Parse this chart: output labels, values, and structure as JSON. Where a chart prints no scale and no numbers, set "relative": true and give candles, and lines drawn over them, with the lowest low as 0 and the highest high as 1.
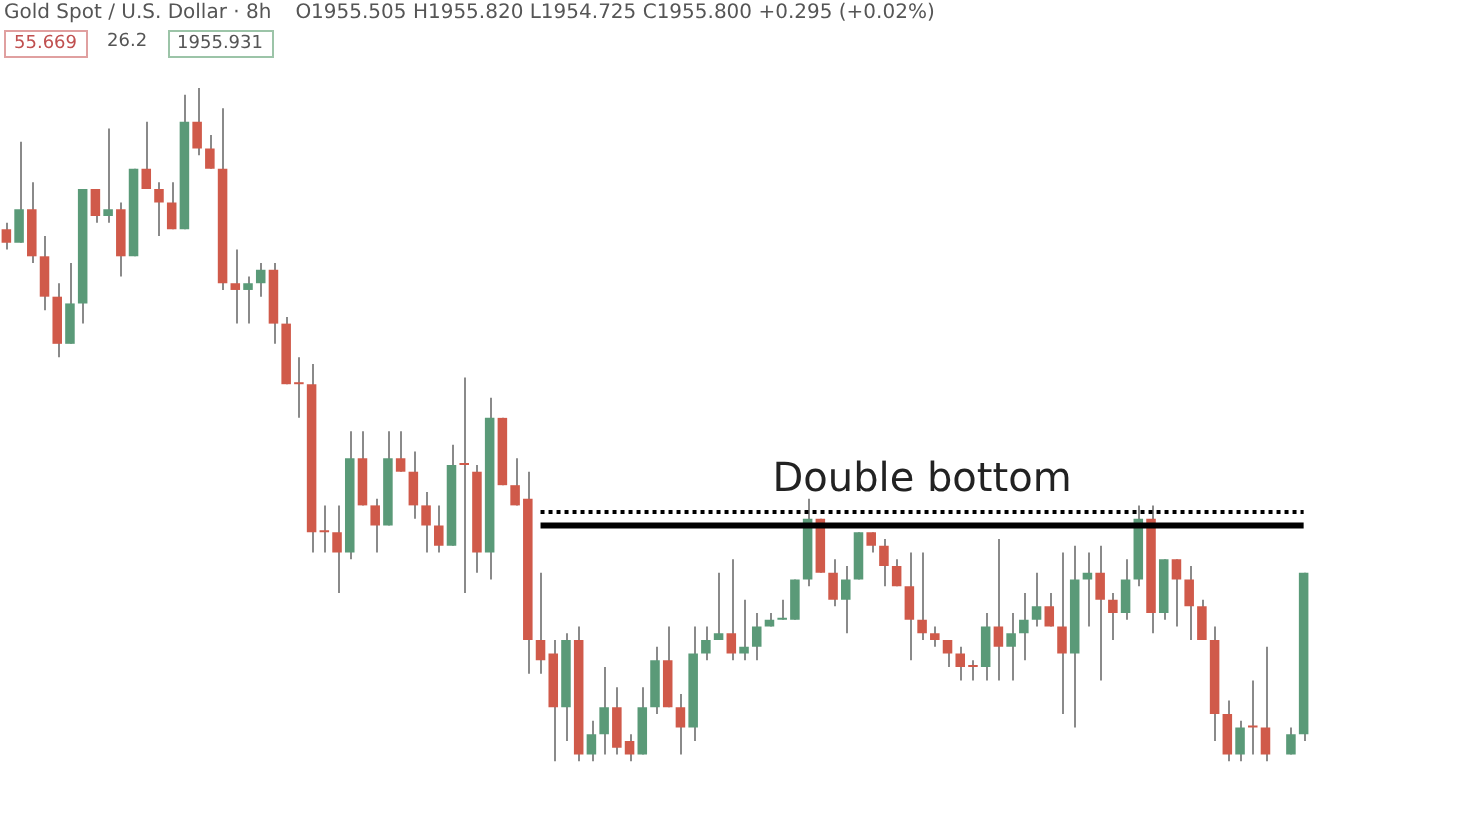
{
  "chart_data": {
    "type": "candlestick",
    "title": "Gold Spot / U.S. Dollar · 8h",
    "relative": true,
    "legend": false,
    "annotations": [
      "Double bottom",
      "O1955.505 H1955.820 L1954.725 C1955.800 +0.295 (+0.02%)",
      "55.669",
      "26.2",
      "1955.931"
    ],
    "categories": [
      null,
      null,
      null,
      null,
      null,
      null,
      null,
      null,
      null,
      null,
      null,
      null,
      null,
      null,
      null,
      null,
      null,
      null,
      null,
      null,
      null,
      null,
      null,
      null,
      null,
      null,
      null,
      null,
      null,
      null,
      null,
      null,
      null,
      null,
      null,
      null,
      null,
      null,
      null,
      null,
      null,
      null,
      null,
      null,
      null,
      null,
      null,
      null,
      null,
      null,
      null,
      null,
      null,
      null,
      null,
      null,
      null,
      null,
      null,
      null,
      null,
      null,
      null,
      null,
      null,
      null,
      null,
      null,
      null,
      null,
      null,
      null,
      null,
      null,
      null,
      null,
      null,
      null,
      null,
      null,
      null,
      null,
      null,
      null,
      null,
      null,
      null,
      null,
      null,
      null,
      null,
      null,
      null,
      null,
      null,
      null,
      null,
      null,
      null,
      null,
      null,
      null,
      null
    ],
    "ohlc": [
      [
        0.79,
        0.8,
        0.76,
        0.77
      ],
      [
        0.77,
        0.92,
        0.77,
        0.82
      ],
      [
        0.82,
        0.86,
        0.74,
        0.75
      ],
      [
        0.75,
        0.78,
        0.67,
        0.69
      ],
      [
        0.69,
        0.71,
        0.6,
        0.62
      ],
      [
        0.62,
        0.74,
        0.62,
        0.68
      ],
      [
        0.68,
        0.85,
        0.65,
        0.85
      ],
      [
        0.85,
        0.85,
        0.8,
        0.81
      ],
      [
        0.81,
        0.94,
        0.8,
        0.82
      ],
      [
        0.82,
        0.83,
        0.72,
        0.75
      ],
      [
        0.75,
        0.88,
        0.75,
        0.88
      ],
      [
        0.88,
        0.95,
        0.85,
        0.85
      ],
      [
        0.85,
        0.86,
        0.78,
        0.83
      ],
      [
        0.83,
        0.86,
        0.79,
        0.79
      ],
      [
        0.79,
        0.99,
        0.79,
        0.95
      ],
      [
        0.95,
        1,
        0.9,
        0.91
      ],
      [
        0.91,
        0.93,
        0.88,
        0.88
      ],
      [
        0.88,
        0.97,
        0.7,
        0.71
      ],
      [
        0.71,
        0.76,
        0.65,
        0.7
      ],
      [
        0.7,
        0.72,
        0.65,
        0.71
      ],
      [
        0.71,
        0.74,
        0.69,
        0.73
      ],
      [
        0.73,
        0.74,
        0.62,
        0.65
      ],
      [
        0.65,
        0.66,
        0.56,
        0.56
      ],
      [
        0.56,
        0.6,
        0.51,
        0.56
      ],
      [
        0.56,
        0.59,
        0.31,
        0.34
      ],
      [
        0.34,
        0.38,
        0.31,
        0.34
      ],
      [
        0.34,
        0.38,
        0.25,
        0.31
      ],
      [
        0.31,
        0.49,
        0.3,
        0.45
      ],
      [
        0.45,
        0.49,
        0.38,
        0.38
      ],
      [
        0.38,
        0.39,
        0.31,
        0.35
      ],
      [
        0.35,
        0.49,
        0.35,
        0.45
      ],
      [
        0.45,
        0.49,
        0.43,
        0.43
      ],
      [
        0.43,
        0.46,
        0.36,
        0.38
      ],
      [
        0.38,
        0.4,
        0.31,
        0.35
      ],
      [
        0.35,
        0.38,
        0.31,
        0.32
      ],
      [
        0.32,
        0.47,
        0.32,
        0.44
      ],
      [
        0.44,
        0.57,
        0.25,
        0.44
      ],
      [
        0.43,
        0.44,
        0.28,
        0.31
      ],
      [
        0.31,
        0.54,
        0.27,
        0.51
      ],
      [
        0.51,
        0.51,
        0.41,
        0.41
      ],
      [
        0.41,
        0.45,
        0.38,
        0.38
      ],
      [
        0.39,
        0.43,
        0.13,
        0.18
      ],
      [
        0.18,
        0.28,
        0.13,
        0.15
      ],
      [
        0.16,
        0.18,
        0,
        0.08
      ],
      [
        0.08,
        0.19,
        0.03,
        0.18
      ],
      [
        0.18,
        0.2,
        0,
        0.01
      ],
      [
        0.01,
        0.06,
        0,
        0.04
      ],
      [
        0.04,
        0.14,
        0.01,
        0.08
      ],
      [
        0.08,
        0.11,
        0.01,
        0.02
      ],
      [
        0.03,
        0.04,
        0,
        0.01
      ],
      [
        0.01,
        0.11,
        0.01,
        0.08
      ],
      [
        0.08,
        0.17,
        0.07,
        0.15
      ],
      [
        0.15,
        0.2,
        0.08,
        0.08
      ],
      [
        0.08,
        0.1,
        0.01,
        0.05
      ],
      [
        0.05,
        0.2,
        0.03,
        0.16
      ],
      [
        0.16,
        0.2,
        0.15,
        0.18
      ],
      [
        0.18,
        0.28,
        0.18,
        0.19
      ],
      [
        0.19,
        0.3,
        0.15,
        0.16
      ],
      [
        0.16,
        0.24,
        0.15,
        0.17
      ],
      [
        0.17,
        0.22,
        0.15,
        0.2
      ],
      [
        0.2,
        0.22,
        0.2,
        0.21
      ],
      [
        0.21,
        0.24,
        0.21,
        0.21
      ],
      [
        0.21,
        0.27,
        0.21,
        0.27
      ],
      [
        0.27,
        0.39,
        0.26,
        0.36
      ],
      [
        0.36,
        0.36,
        0.28,
        0.28
      ],
      [
        0.28,
        0.3,
        0.23,
        0.24
      ],
      [
        0.24,
        0.29,
        0.19,
        0.27
      ],
      [
        0.27,
        0.34,
        0.27,
        0.34
      ],
      [
        0.34,
        0.34,
        0.31,
        0.32
      ],
      [
        0.32,
        0.33,
        0.26,
        0.29
      ],
      [
        0.29,
        0.3,
        0.26,
        0.26
      ],
      [
        0.26,
        0.31,
        0.15,
        0.21
      ],
      [
        0.21,
        0.31,
        0.18,
        0.19
      ],
      [
        0.19,
        0.2,
        0.17,
        0.18
      ],
      [
        0.18,
        0.18,
        0.14,
        0.16
      ],
      [
        0.16,
        0.17,
        0.12,
        0.14
      ],
      [
        0.14,
        0.15,
        0.12,
        0.14
      ],
      [
        0.14,
        0.22,
        0.12,
        0.2
      ],
      [
        0.2,
        0.33,
        0.12,
        0.17
      ],
      [
        0.17,
        0.22,
        0.12,
        0.19
      ],
      [
        0.19,
        0.25,
        0.15,
        0.21
      ],
      [
        0.21,
        0.28,
        0.2,
        0.23
      ],
      [
        0.23,
        0.25,
        0.2,
        0.2
      ],
      [
        0.2,
        0.31,
        0.07,
        0.16
      ],
      [
        0.16,
        0.32,
        0.05,
        0.27
      ],
      [
        0.27,
        0.31,
        0.2,
        0.28
      ],
      [
        0.28,
        0.32,
        0.12,
        0.24
      ],
      [
        0.24,
        0.25,
        0.18,
        0.22
      ],
      [
        0.22,
        0.3,
        0.21,
        0.27
      ],
      [
        0.27,
        0.38,
        0.26,
        0.36
      ],
      [
        0.36,
        0.38,
        0.19,
        0.22
      ],
      [
        0.22,
        0.3,
        0.21,
        0.3
      ],
      [
        0.3,
        0.3,
        0.2,
        0.27
      ],
      [
        0.27,
        0.29,
        0.18,
        0.23
      ],
      [
        0.23,
        0.24,
        0.18,
        0.18
      ],
      [
        0.18,
        0.2,
        0.03,
        0.07
      ],
      [
        0.07,
        0.09,
        0,
        0.01
      ],
      [
        0.01,
        0.06,
        0,
        0.05
      ],
      [
        0.05,
        0.12,
        0.01,
        0.05
      ],
      [
        0.05,
        0.17,
        0,
        0.01
      ],
      null,
      [
        0.01,
        0.05,
        0.01,
        0.04
      ],
      [
        0.04,
        0.28,
        0.03,
        0.28
      ]
    ],
    "colors": [
      "#d05a4a",
      "#5a9a78",
      "#d05a4a",
      "#d05a4a",
      "#d05a4a",
      "#5a9a78",
      "#5a9a78",
      "#d05a4a",
      "#5a9a78",
      "#d05a4a",
      "#5a9a78",
      "#d05a4a",
      "#d05a4a",
      "#d05a4a",
      "#5a9a78",
      "#d05a4a",
      "#d05a4a",
      "#d05a4a",
      "#d05a4a",
      "#5a9a78",
      "#5a9a78",
      "#d05a4a",
      "#d05a4a",
      "#d05a4a",
      "#d05a4a",
      "#d05a4a",
      "#d05a4a",
      "#5a9a78",
      "#d05a4a",
      "#d05a4a",
      "#5a9a78",
      "#d05a4a",
      "#d05a4a",
      "#d05a4a",
      "#d05a4a",
      "#5a9a78",
      "#d05a4a",
      "#d05a4a",
      "#5a9a78",
      "#d05a4a",
      "#d05a4a",
      "#d05a4a",
      "#d05a4a",
      "#d05a4a",
      "#5a9a78",
      "#d05a4a",
      "#5a9a78",
      "#5a9a78",
      "#d05a4a",
      "#d05a4a",
      "#5a9a78",
      "#5a9a78",
      "#d05a4a",
      "#d05a4a",
      "#5a9a78",
      "#5a9a78",
      "#5a9a78",
      "#d05a4a",
      "#5a9a78",
      "#5a9a78",
      "#5a9a78",
      "#5a9a78",
      "#5a9a78",
      "#5a9a78",
      "#d05a4a",
      "#d05a4a",
      "#5a9a78",
      "#5a9a78",
      "#d05a4a",
      "#d05a4a",
      "#d05a4a",
      "#d05a4a",
      "#d05a4a",
      "#d05a4a",
      "#d05a4a",
      "#d05a4a",
      "#d05a4a",
      "#5a9a78",
      "#d05a4a",
      "#5a9a78",
      "#5a9a78",
      "#5a9a78",
      "#d05a4a",
      "#d05a4a",
      "#5a9a78",
      "#5a9a78",
      "#d05a4a",
      "#d05a4a",
      "#5a9a78",
      "#5a9a78",
      "#d05a4a",
      "#5a9a78",
      "#d05a4a",
      "#d05a4a",
      "#d05a4a",
      "#d05a4a",
      "#d05a4a",
      "#5a9a78",
      "#d05a4a",
      "#d05a4a",
      null,
      "#5a9a78",
      "#5a9a78"
    ],
    "series": [
      {
        "type": "line",
        "color": "#000000",
        "line_style": "solid",
        "values": [
          null,
          null,
          null,
          null,
          null,
          null,
          null,
          null,
          null,
          null,
          null,
          null,
          null,
          null,
          null,
          null,
          null,
          null,
          null,
          null,
          null,
          null,
          null,
          null,
          null,
          null,
          null,
          null,
          null,
          null,
          null,
          null,
          null,
          null,
          null,
          null,
          null,
          null,
          null,
          null,
          null,
          null,
          0.35,
          null,
          null,
          null,
          null,
          null,
          null,
          null,
          null,
          null,
          null,
          null,
          null,
          null,
          null,
          null,
          null,
          null,
          null,
          null,
          null,
          null,
          null,
          null,
          null,
          null,
          null,
          null,
          null,
          null,
          null,
          null,
          null,
          null,
          null,
          null,
          null,
          null,
          null,
          null,
          null,
          null,
          null,
          null,
          null,
          null,
          null,
          null,
          null,
          null,
          null,
          null,
          null,
          null,
          null,
          null,
          null,
          null,
          null,
          null,
          0.35
        ]
      },
      {
        "type": "line",
        "color": "#000000",
        "line_style": "dotted",
        "values": [
          null,
          null,
          null,
          null,
          null,
          null,
          null,
          null,
          null,
          null,
          null,
          null,
          null,
          null,
          null,
          null,
          null,
          null,
          null,
          null,
          null,
          null,
          null,
          null,
          null,
          null,
          null,
          null,
          null,
          null,
          null,
          null,
          null,
          null,
          null,
          null,
          null,
          null,
          null,
          null,
          null,
          null,
          0.37,
          null,
          null,
          null,
          null,
          null,
          null,
          null,
          null,
          null,
          null,
          null,
          null,
          null,
          null,
          null,
          null,
          null,
          null,
          null,
          null,
          null,
          null,
          null,
          null,
          null,
          null,
          null,
          null,
          null,
          null,
          null,
          null,
          null,
          null,
          null,
          null,
          null,
          null,
          null,
          null,
          null,
          null,
          null,
          null,
          null,
          null,
          null,
          null,
          null,
          null,
          null,
          null,
          null,
          null,
          null,
          null,
          null,
          null,
          null,
          0.37
        ]
      }
    ]
  }
}
